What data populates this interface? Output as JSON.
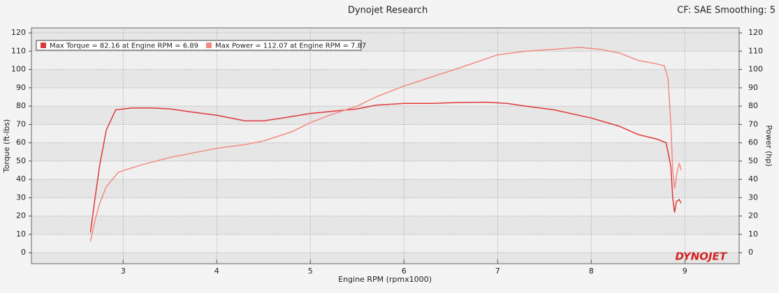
{
  "chart_data": {
    "type": "line",
    "title": "Dynojet Research",
    "subtitle": "CF: SAE Smoothing: 5",
    "xlabel": "Engine RPM (rpmx1000)",
    "ylabel": "Torque (ft-lbs)",
    "y2label": "Power (hp)",
    "logo": "DYNOJET",
    "xlim": [
      2.02,
      9.58
    ],
    "xticks": [
      3,
      4,
      5,
      6,
      7,
      8,
      9
    ],
    "ylim": [
      -6,
      122.7
    ],
    "yticks": [
      0,
      10,
      20,
      30,
      40,
      50,
      60,
      70,
      80,
      90,
      100,
      110,
      120
    ],
    "y2lim": [
      -6,
      122.7
    ],
    "y2ticks": [
      0,
      10,
      20,
      30,
      40,
      50,
      60,
      70,
      80,
      90,
      100,
      110,
      120
    ],
    "grid": true,
    "legend": "top-left",
    "series": [
      {
        "name": "Max Torque = 82.16 at Engine RPM = 6.89",
        "color": "#e03838",
        "x": [
          2.65,
          2.7,
          2.75,
          2.82,
          2.92,
          3.1,
          3.3,
          3.5,
          3.7,
          4.0,
          4.2,
          4.3,
          4.5,
          4.7,
          5.0,
          5.2,
          5.5,
          5.7,
          6.0,
          6.3,
          6.6,
          6.89,
          7.1,
          7.3,
          7.6,
          8.0,
          8.3,
          8.5,
          8.7,
          8.8,
          8.85,
          8.87,
          8.89,
          8.91,
          8.94,
          8.96
        ],
        "values": [
          11,
          30,
          48,
          67,
          78,
          79,
          79,
          78.5,
          77,
          75,
          73,
          72,
          72,
          73.5,
          76,
          77,
          78.5,
          80.5,
          81.5,
          81.5,
          82,
          82.16,
          81.5,
          80,
          78,
          73.5,
          69,
          64.5,
          62,
          60,
          47,
          30,
          22,
          28,
          29,
          27
        ]
      },
      {
        "name": "Max Power = 112.07 at Engine RPM = 7.87",
        "color": "#f28a82",
        "axis": "y2",
        "x": [
          2.65,
          2.7,
          2.75,
          2.82,
          2.95,
          3.2,
          3.5,
          3.8,
          4.0,
          4.3,
          4.5,
          4.8,
          5.0,
          5.2,
          5.5,
          5.7,
          6.0,
          6.3,
          6.6,
          7.0,
          7.3,
          7.6,
          7.87,
          8.1,
          8.3,
          8.5,
          8.7,
          8.78,
          8.82,
          8.85,
          8.87,
          8.89,
          8.92,
          8.94,
          8.96
        ],
        "values": [
          6,
          18,
          27,
          36,
          44,
          48,
          52,
          55,
          57,
          59,
          61,
          66,
          71,
          75,
          80,
          85,
          91,
          96,
          101,
          108,
          110,
          111,
          112.07,
          111,
          109,
          105,
          103,
          102,
          95,
          70,
          45,
          35,
          45,
          49,
          45
        ]
      }
    ]
  }
}
